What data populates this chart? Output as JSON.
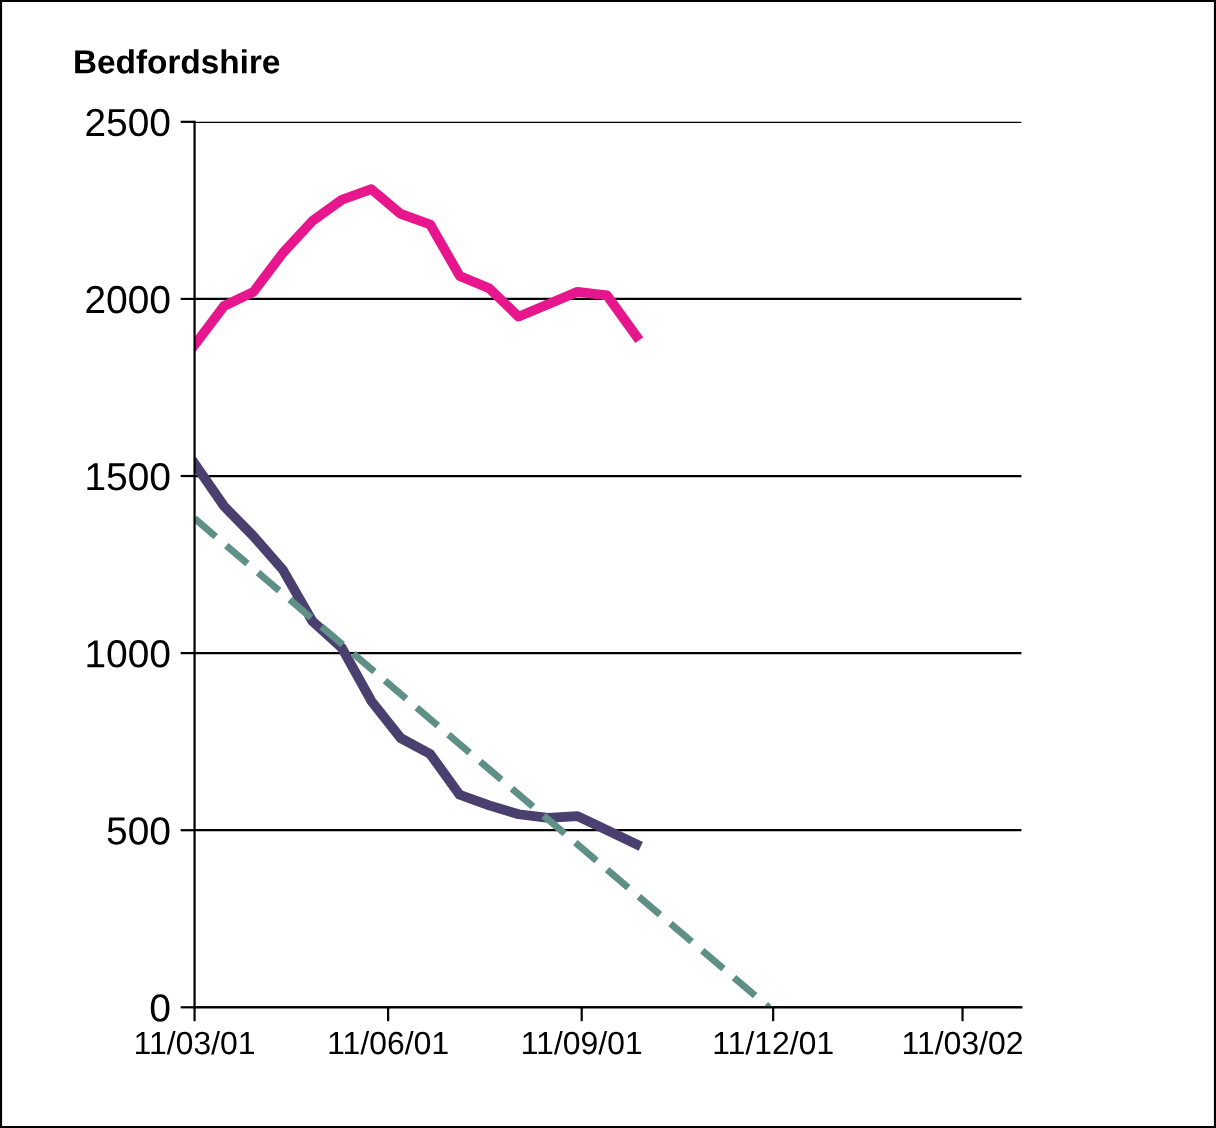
{
  "chart_data": {
    "type": "line",
    "title": "Bedfordshire",
    "x": [
      "2001-03-11",
      "2001-03-25",
      "2001-04-08",
      "2001-04-22",
      "2001-05-06",
      "2001-05-20",
      "2001-06-03",
      "2001-06-17",
      "2001-07-01",
      "2001-07-15",
      "2001-07-29",
      "2001-08-12",
      "2001-08-26",
      "2001-09-09",
      "2001-09-23",
      "2001-10-07"
    ],
    "series": [
      {
        "color": "#e8168c",
        "values": [
          1870,
          1980,
          2020,
          2130,
          2220,
          2280,
          2310,
          2240,
          2210,
          2065,
          2030,
          1950,
          1985,
          2020,
          2010,
          1895
        ]
      },
      {
        "color": "#4a4070",
        "values": [
          1535,
          1415,
          1330,
          1235,
          1090,
          1015,
          865,
          760,
          715,
          600,
          570,
          545,
          535,
          540,
          500,
          460
        ]
      },
      {
        "color": "#5f9088",
        "x": [
          "2001-03-11",
          "2001-12-09"
        ],
        "values": [
          1380,
          0
        ],
        "line_style": "dashed"
      }
    ],
    "xlim": [
      "2001-03-11",
      "2002-04-08"
    ],
    "ylim": [
      0,
      2500
    ],
    "xticks": [
      {
        "value": "2001-03-11",
        "label": "11/03/01"
      },
      {
        "value": "2001-06-11",
        "label": "11/06/01"
      },
      {
        "value": "2001-09-11",
        "label": "11/09/01"
      },
      {
        "value": "2001-12-11",
        "label": "11/12/01"
      },
      {
        "value": "2002-03-11",
        "label": "11/03/02"
      }
    ],
    "yticks": [
      0,
      500,
      1000,
      1500,
      2000,
      2500
    ],
    "grid": "y",
    "legend": false,
    "marker": "none",
    "line_style": "solid"
  }
}
